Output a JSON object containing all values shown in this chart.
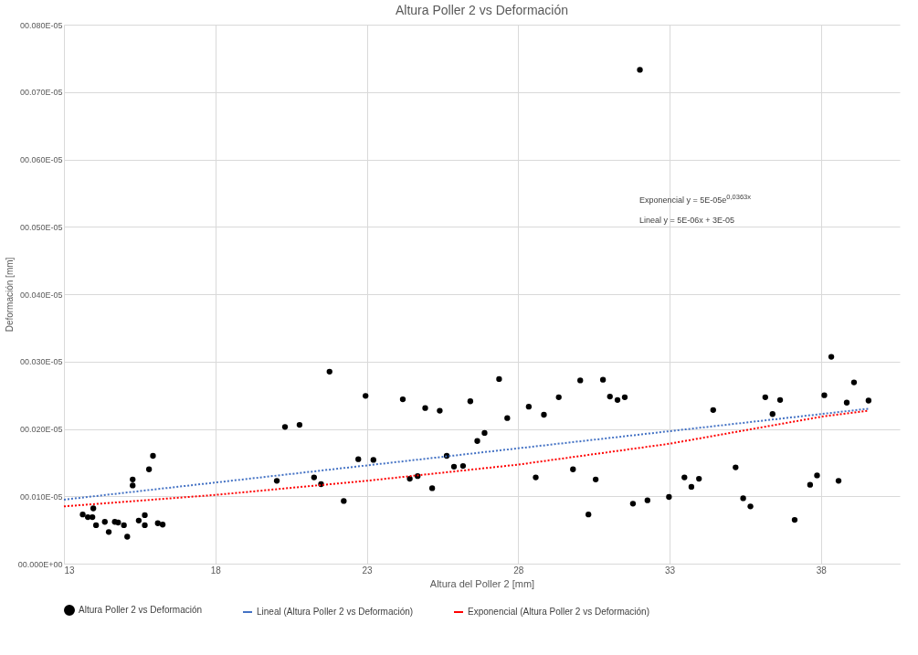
{
  "chart_data": {
    "type": "scatter",
    "title": "Altura Poller 2 vs Deformación",
    "xlabel": "Altura del Poller 2 [mm]",
    "ylabel": "Deformación [mm]",
    "xlim": [
      13,
      40.6
    ],
    "xticks": [
      13,
      18,
      23,
      28,
      33,
      38
    ],
    "ylim": [
      0,
      8e-07
    ],
    "yticks": [
      {
        "value": 0,
        "label": "00.000E+00"
      },
      {
        "value": 1e-07,
        "label": "00.010E-05"
      },
      {
        "value": 2e-07,
        "label": "00.020E-05"
      },
      {
        "value": 3e-07,
        "label": "00.030E-05"
      },
      {
        "value": 4e-07,
        "label": "00.040E-05"
      },
      {
        "value": 5e-07,
        "label": "00.050E-05"
      },
      {
        "value": 6e-07,
        "label": "00.060E-05"
      },
      {
        "value": 7e-07,
        "label": "00.070E-05"
      },
      {
        "value": 8e-07,
        "label": "00.080E-05"
      }
    ],
    "grid": true,
    "legend": "bottom",
    "marker": "circle",
    "annotations": [
      "Exponencial y = 5E-05e$^{0,0363x}$",
      "Lineal y = 5E-06x + 3E-05"
    ],
    "series": [
      {
        "name": "Altura Poller 2 vs Deformación",
        "color": "#000000",
        "x": [
          13.62,
          13.79,
          13.94,
          13.97,
          14.06,
          14.35,
          14.48,
          14.68,
          14.79,
          14.98,
          15.09,
          15.27,
          15.27,
          15.47,
          15.67,
          15.67,
          15.81,
          15.94,
          16.1,
          16.26,
          20.03,
          20.3,
          20.78,
          21.26,
          21.49,
          21.77,
          22.24,
          22.72,
          22.96,
          23.22,
          24.19,
          24.42,
          24.68,
          24.93,
          25.16,
          25.41,
          25.64,
          25.88,
          26.18,
          26.42,
          26.65,
          26.89,
          27.37,
          27.64,
          28.35,
          28.58,
          28.85,
          29.34,
          29.81,
          30.05,
          30.32,
          30.56,
          30.8,
          31.03,
          31.28,
          31.52,
          31.79,
          32.02,
          32.27,
          32.98,
          33.49,
          33.72,
          33.97,
          34.44,
          35.18,
          35.43,
          35.67,
          36.16,
          36.4,
          36.65,
          37.13,
          37.64,
          37.87,
          38.11,
          38.34,
          38.58,
          38.85,
          39.09,
          39.57
        ],
        "values": [
          7.3e-08,
          6.9e-08,
          6.9e-08,
          8.2e-08,
          5.7e-08,
          6.2e-08,
          4.7e-08,
          6.2e-08,
          6.1e-08,
          5.7e-08,
          4e-08,
          1.25e-07,
          1.16e-07,
          6.4e-08,
          7.2e-08,
          5.7e-08,
          1.4e-07,
          1.6e-07,
          6e-08,
          5.8e-08,
          1.23e-07,
          2.03e-07,
          2.06e-07,
          1.28e-07,
          1.18e-07,
          2.85e-07,
          9.3e-08,
          1.55e-07,
          2.49e-07,
          1.54e-07,
          2.44e-07,
          1.26e-07,
          1.3e-07,
          2.31e-07,
          1.12e-07,
          2.27e-07,
          1.6e-07,
          1.44e-07,
          1.45e-07,
          2.41e-07,
          1.82e-07,
          1.94e-07,
          2.74e-07,
          2.16e-07,
          2.33e-07,
          1.28e-07,
          2.21e-07,
          2.47e-07,
          1.4e-07,
          2.72e-07,
          7.3e-08,
          1.25e-07,
          2.73e-07,
          2.48e-07,
          2.43e-07,
          2.47e-07,
          8.9e-08,
          7.33e-07,
          9.4e-08,
          9.9e-08,
          1.28e-07,
          1.14e-07,
          1.26e-07,
          2.28e-07,
          1.43e-07,
          9.7e-08,
          8.5e-08,
          2.47e-07,
          2.22e-07,
          2.43e-07,
          6.5e-08,
          1.17e-07,
          1.31e-07,
          2.5e-07,
          3.07e-07,
          1.23e-07,
          2.39e-07,
          2.69e-07,
          2.42e-07
        ]
      },
      {
        "name": "Lineal (Altura Poller 2 vs Deformación)",
        "type": "line",
        "marker": "none",
        "line_style": "dotted",
        "color": "#4472c4",
        "x": [
          13,
          39.57
        ],
        "values": [
          9.5e-08,
          2.3e-07
        ]
      },
      {
        "name": "Exponencial (Altura Poller 2 vs Deformación)",
        "type": "line",
        "marker": "none",
        "line_style": "dotted",
        "color": "#ff0000",
        "x": [
          13,
          18,
          23,
          28,
          33,
          38,
          39.57
        ],
        "values": [
          8.5e-08,
          1.02e-07,
          1.23e-07,
          1.47e-07,
          1.78e-07,
          2.18e-07,
          2.27e-07
        ]
      }
    ]
  }
}
